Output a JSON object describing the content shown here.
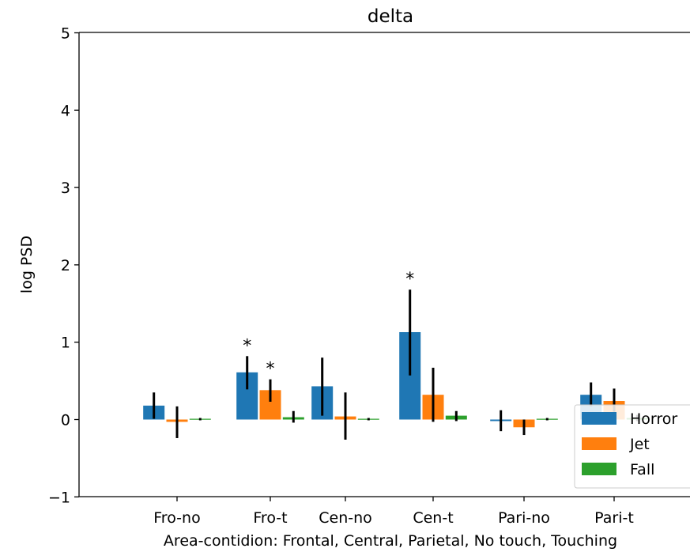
{
  "chart_data": {
    "type": "bar",
    "title": "delta",
    "xlabel": "Area-contidion: Frontal, Central, Parietal, No touch, Touching",
    "ylabel": "log PSD",
    "ylim": [
      -1,
      5
    ],
    "yticks": [
      -1,
      0,
      1,
      2,
      3,
      4,
      5
    ],
    "ytick_labels": [
      "−1",
      "0",
      "1",
      "2",
      "3",
      "4",
      "5"
    ],
    "categories": [
      "Fro-no",
      "Fro-t",
      "Cen-no",
      "Cen-t",
      "Pari-no",
      "Pari-t"
    ],
    "series": [
      {
        "name": "Horror",
        "color": "#1f77b4",
        "values": [
          0.18,
          0.61,
          0.43,
          1.13,
          -0.02,
          0.32
        ],
        "err_low": [
          0.01,
          0.39,
          0.05,
          0.57,
          -0.15,
          0.17
        ],
        "err_high": [
          0.35,
          0.82,
          0.8,
          1.68,
          0.12,
          0.48
        ],
        "significance": [
          "",
          "*",
          "",
          "*",
          "",
          ""
        ]
      },
      {
        "name": "Jet",
        "color": "#ff7f0e",
        "values": [
          -0.03,
          0.38,
          0.04,
          0.32,
          -0.1,
          0.24
        ],
        "err_low": [
          -0.24,
          0.23,
          -0.26,
          -0.03,
          -0.2,
          0.1
        ],
        "err_high": [
          0.17,
          0.52,
          0.35,
          0.67,
          0.0,
          0.4
        ],
        "significance": [
          "",
          "*",
          "",
          "",
          "",
          ""
        ]
      },
      {
        "name": "Fall",
        "color": "#2ca02c",
        "values": [
          0.01,
          0.03,
          0.01,
          0.05,
          0.01,
          0.02
        ],
        "err_low": [
          -0.01,
          -0.04,
          -0.01,
          -0.02,
          -0.01,
          -0.02
        ],
        "err_high": [
          0.02,
          0.11,
          0.02,
          0.11,
          0.02,
          0.06
        ],
        "significance": [
          "",
          "",
          "",
          "",
          "",
          ""
        ]
      }
    ],
    "legend": {
      "position": "lower-right",
      "entries": [
        "Horror",
        "Jet",
        "Fall"
      ]
    },
    "grid": false,
    "errorbar_color": "#000000"
  }
}
